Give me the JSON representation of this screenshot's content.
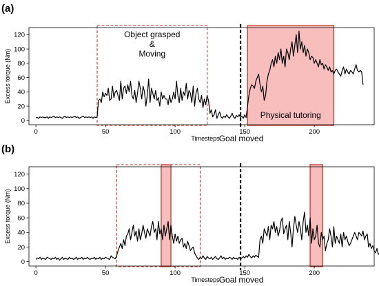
{
  "figure": {
    "panel_labels": [
      "(a)",
      "(b)"
    ],
    "goal_label": "Goal moved"
  },
  "chart_data": [
    {
      "type": "line",
      "panel": "(a)",
      "xlabel": "Timesteps",
      "ylabel": "Excess torque (Nm)",
      "xlim": [
        -5,
        243
      ],
      "ylim": [
        -6,
        130
      ],
      "xticks": [
        0,
        50,
        100,
        150,
        200
      ],
      "yticks": [
        0,
        20,
        40,
        60,
        80,
        100,
        120
      ],
      "grid": false,
      "goal_moved_x": 147,
      "annotations": [
        {
          "label_lines": [
            "Object grasped",
            "&",
            "Moving"
          ],
          "x_range": [
            44,
            123
          ],
          "style": "dashed",
          "color": "#c0392b"
        },
        {
          "label_lines": [
            "Physical tutoring"
          ],
          "x_range": [
            152,
            214
          ],
          "style": "filled",
          "color": "#c0392b"
        }
      ],
      "x_start": 0,
      "values": [
        4,
        4,
        3,
        5,
        4,
        5,
        4,
        4,
        5,
        3,
        5,
        4,
        5,
        6,
        4,
        5,
        4,
        5,
        4,
        3,
        5,
        6,
        4,
        5,
        4,
        5,
        4,
        5,
        6,
        4,
        5,
        3,
        4,
        5,
        6,
        4,
        5,
        4,
        5,
        4,
        5,
        3,
        5,
        4,
        5,
        28,
        30,
        25,
        40,
        33,
        38,
        35,
        45,
        28,
        30,
        48,
        32,
        40,
        42,
        35,
        28,
        55,
        30,
        45,
        48,
        38,
        50,
        40,
        55,
        35,
        30,
        42,
        25,
        38,
        55,
        45,
        30,
        48,
        40,
        20,
        35,
        58,
        25,
        45,
        38,
        30,
        42,
        28,
        32,
        20,
        40,
        30,
        35,
        30,
        30,
        22,
        35,
        25,
        30,
        40,
        30,
        55,
        35,
        25,
        45,
        28,
        40,
        35,
        52,
        30,
        42,
        38,
        25,
        48,
        20,
        38,
        45,
        30,
        25,
        35,
        18,
        30,
        22,
        35,
        28,
        10,
        15,
        5,
        8,
        15,
        3,
        8,
        12,
        5,
        3,
        6,
        4,
        8,
        5,
        3,
        6,
        10,
        5,
        3,
        7,
        5,
        8,
        4,
        6,
        3,
        8,
        4,
        20,
        35,
        45,
        50,
        48,
        45,
        55,
        60,
        65,
        50,
        40,
        48,
        28,
        35,
        55,
        65,
        70,
        80,
        85,
        75,
        90,
        80,
        95,
        85,
        100,
        80,
        90,
        75,
        100,
        95,
        85,
        100,
        110,
        90,
        105,
        120,
        95,
        125,
        100,
        110,
        95,
        105,
        90,
        100,
        95,
        85,
        90,
        88,
        80,
        85,
        80,
        75,
        85,
        78,
        80,
        72,
        78,
        75,
        70,
        75,
        68,
        70,
        65,
        70,
        72,
        68,
        65,
        62,
        70,
        75,
        65,
        72,
        68,
        65,
        70,
        68,
        65,
        72,
        78,
        70,
        68,
        70,
        68,
        50
      ]
    },
    {
      "type": "line",
      "panel": "(b)",
      "xlabel": "Timesteps",
      "ylabel": "Excess torque (Nm)",
      "xlim": [
        -5,
        243
      ],
      "ylim": [
        -6,
        130
      ],
      "xticks": [
        0,
        50,
        100,
        150,
        200
      ],
      "yticks": [
        0,
        20,
        40,
        60,
        80,
        100,
        120
      ],
      "grid": false,
      "goal_moved_x": 147,
      "annotations": [
        {
          "label_lines": [],
          "x_range": [
            58,
            118
          ],
          "style": "dashed",
          "color": "#c0392b"
        },
        {
          "label_lines": [],
          "x_range": [
            90,
            97
          ],
          "style": "filled",
          "color": "#c0392b"
        },
        {
          "label_lines": [],
          "x_range": [
            197,
            206
          ],
          "style": "filled",
          "color": "#c0392b"
        }
      ],
      "x_start": 0,
      "values": [
        3,
        5,
        4,
        6,
        3,
        5,
        4,
        3,
        6,
        5,
        4,
        3,
        5,
        4,
        6,
        3,
        5,
        2,
        4,
        6,
        3,
        5,
        4,
        3,
        6,
        4,
        5,
        3,
        4,
        6,
        3,
        5,
        4,
        6,
        3,
        5,
        4,
        6,
        4,
        3,
        5,
        4,
        6,
        3,
        5,
        4,
        6,
        3,
        5,
        4,
        6,
        5,
        4,
        3,
        8,
        6,
        5,
        4,
        8,
        15,
        20,
        25,
        18,
        30,
        22,
        35,
        38,
        45,
        30,
        40,
        50,
        35,
        42,
        28,
        45,
        30,
        38,
        50,
        40,
        32,
        45,
        40,
        35,
        48,
        55,
        40,
        45,
        30,
        55,
        38,
        45,
        30,
        50,
        35,
        45,
        55,
        30,
        50,
        35,
        25,
        38,
        28,
        35,
        25,
        30,
        32,
        20,
        25,
        18,
        28,
        22,
        15,
        18,
        20,
        12,
        8,
        5,
        3,
        6,
        4,
        8,
        5,
        3,
        7,
        5,
        4,
        6,
        3,
        5,
        7,
        4,
        3,
        5,
        8,
        4,
        6,
        3,
        5,
        4,
        6,
        5,
        3,
        6,
        4,
        5,
        3,
        6,
        4,
        5,
        7,
        5,
        8,
        6,
        10,
        7,
        5,
        8,
        6,
        9,
        7,
        6,
        30,
        35,
        25,
        45,
        40,
        35,
        48,
        30,
        50,
        45,
        55,
        40,
        48,
        35,
        42,
        55,
        60,
        38,
        45,
        50,
        30,
        55,
        40,
        20,
        45,
        62,
        50,
        40,
        55,
        45,
        30,
        55,
        68,
        40,
        50,
        35,
        60,
        25,
        45,
        30,
        35,
        50,
        25,
        20,
        40,
        30,
        35,
        15,
        25,
        30,
        45,
        35,
        20,
        48,
        25,
        35,
        30,
        25,
        38,
        20,
        40,
        30,
        35,
        28,
        22,
        25,
        30,
        35,
        40,
        35,
        30,
        40,
        38,
        35,
        42,
        30,
        35,
        38,
        20,
        25,
        18,
        22,
        15,
        12,
        18,
        10,
        12,
        8,
        6,
        5,
        4
      ]
    }
  ]
}
